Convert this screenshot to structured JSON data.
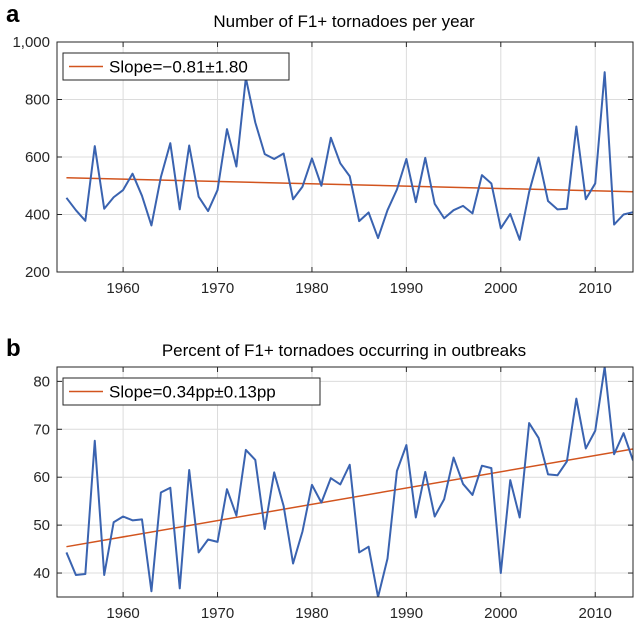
{
  "chart_data": [
    {
      "type": "line",
      "panel_label": "a",
      "title": "Number of F1+ tornadoes per year",
      "xlabel": "",
      "ylabel": "",
      "xlim": [
        1953,
        2014
      ],
      "ylim": [
        200,
        1000
      ],
      "x_ticks": [
        1960,
        1970,
        1980,
        1990,
        2000,
        2010
      ],
      "y_ticks": [
        200,
        400,
        600,
        800,
        1000
      ],
      "y_tick_labels": [
        "200",
        "400",
        "600",
        "800",
        "1,000"
      ],
      "grid": true,
      "legend": {
        "placement": "top-left"
      },
      "series": [
        {
          "name": "",
          "color": "#3a63b0",
          "x": [
            1954,
            1955,
            1956,
            1957,
            1958,
            1959,
            1960,
            1961,
            1962,
            1963,
            1964,
            1965,
            1966,
            1967,
            1968,
            1969,
            1970,
            1971,
            1972,
            1973,
            1974,
            1975,
            1976,
            1977,
            1978,
            1979,
            1980,
            1981,
            1982,
            1983,
            1984,
            1985,
            1986,
            1987,
            1988,
            1989,
            1990,
            1991,
            1992,
            1993,
            1994,
            1995,
            1996,
            1997,
            1998,
            1999,
            2000,
            2001,
            2002,
            2003,
            2004,
            2005,
            2006,
            2007,
            2008,
            2009,
            2010,
            2011,
            2012,
            2013,
            2014
          ],
          "values": [
            458,
            415,
            378,
            638,
            420,
            460,
            485,
            542,
            465,
            362,
            530,
            648,
            418,
            640,
            462,
            412,
            485,
            697,
            567,
            875,
            720,
            610,
            593,
            612,
            453,
            497,
            595,
            500,
            667,
            578,
            533,
            377,
            407,
            318,
            415,
            487,
            593,
            443,
            597,
            437,
            387,
            415,
            430,
            404,
            537,
            508,
            352,
            402,
            312,
            478,
            598,
            447,
            418,
            420,
            706,
            453,
            508,
            895,
            365,
            400,
            408
          ]
        },
        {
          "name": "Slope=−0.81±1.80",
          "color": "#d2541e",
          "x": [
            1954,
            2014
          ],
          "values": [
            528,
            479
          ]
        }
      ]
    },
    {
      "type": "line",
      "panel_label": "b",
      "title": "Percent of F1+ tornadoes occurring in outbreaks",
      "xlabel": "",
      "ylabel": "",
      "xlim": [
        1953,
        2014
      ],
      "ylim": [
        35,
        83
      ],
      "x_ticks": [
        1960,
        1970,
        1980,
        1990,
        2000,
        2010
      ],
      "y_ticks": [
        40,
        50,
        60,
        70,
        80
      ],
      "y_tick_labels": [
        "40",
        "50",
        "60",
        "70",
        "80"
      ],
      "grid": true,
      "legend": {
        "placement": "top-left"
      },
      "series": [
        {
          "name": "",
          "color": "#3a63b0",
          "x": [
            1954,
            1955,
            1956,
            1957,
            1958,
            1959,
            1960,
            1961,
            1962,
            1963,
            1964,
            1965,
            1966,
            1967,
            1968,
            1969,
            1970,
            1971,
            1972,
            1973,
            1974,
            1975,
            1976,
            1977,
            1978,
            1979,
            1980,
            1981,
            1982,
            1983,
            1984,
            1985,
            1986,
            1987,
            1988,
            1989,
            1990,
            1991,
            1992,
            1993,
            1994,
            1995,
            1996,
            1997,
            1998,
            1999,
            2000,
            2001,
            2002,
            2003,
            2004,
            2005,
            2006,
            2007,
            2008,
            2009,
            2010,
            2011,
            2012,
            2013,
            2014
          ],
          "values": [
            44.3,
            39.6,
            39.8,
            67.6,
            39.6,
            50.6,
            51.8,
            51.0,
            51.2,
            36.2,
            56.8,
            57.8,
            36.8,
            61.5,
            44.3,
            47.0,
            46.5,
            57.5,
            52.0,
            65.7,
            63.6,
            49.2,
            61.0,
            54.0,
            42.0,
            48.7,
            58.4,
            54.7,
            59.8,
            58.5,
            62.6,
            44.3,
            45.5,
            35.0,
            43.0,
            61.3,
            66.7,
            51.6,
            61.1,
            51.8,
            55.4,
            64.1,
            58.6,
            56.3,
            62.4,
            61.9,
            40.0,
            59.4,
            51.6,
            71.3,
            68.2,
            60.6,
            60.4,
            63.3,
            76.4,
            66.0,
            69.7,
            83.0,
            64.8,
            69.2,
            63.5
          ]
        },
        {
          "name": "Slope=0.34pp±0.13pp",
          "color": "#d2541e",
          "x": [
            1954,
            2014
          ],
          "values": [
            45.5,
            65.9
          ]
        }
      ]
    }
  ]
}
